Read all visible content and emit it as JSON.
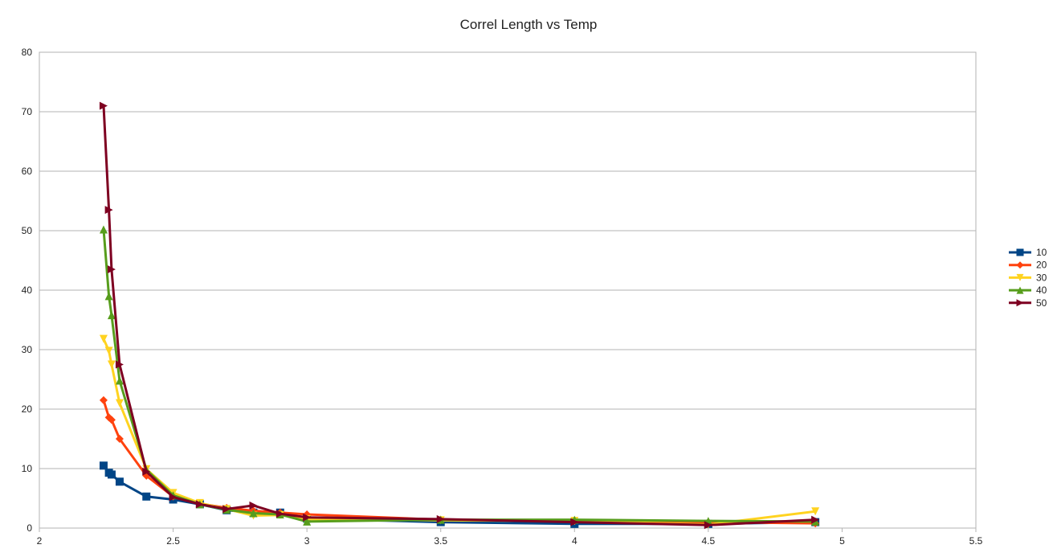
{
  "chart_data": {
    "type": "line",
    "title": "Correl Length vs Temp",
    "xlabel": "",
    "ylabel": "",
    "xlim": [
      2,
      5.5
    ],
    "ylim": [
      0,
      80
    ],
    "x_ticks": [
      2,
      2.5,
      3,
      3.5,
      4,
      4.5,
      5,
      5.5
    ],
    "y_ticks": [
      0,
      10,
      20,
      30,
      40,
      50,
      60,
      70,
      80
    ],
    "x_tick_labels": [
      "2",
      "2.5",
      "3",
      "3.5",
      "4",
      "4.5",
      "5",
      "5.5"
    ],
    "y_tick_labels": [
      "0",
      "10",
      "20",
      "30",
      "40",
      "50",
      "60",
      "70",
      "80"
    ],
    "grid": true,
    "legend_position": "right",
    "series": [
      {
        "name": "10",
        "color": "#004586",
        "marker": "square",
        "points": [
          [
            2.24,
            10.5
          ],
          [
            2.26,
            9.3
          ],
          [
            2.27,
            9.0
          ],
          [
            2.3,
            7.8
          ],
          [
            2.4,
            5.3
          ],
          [
            2.5,
            4.8
          ],
          [
            2.6,
            4.0
          ],
          [
            2.7,
            3.0
          ],
          [
            2.8,
            2.6
          ],
          [
            2.9,
            2.6
          ],
          [
            3.0,
            1.6
          ],
          [
            3.5,
            1.0
          ],
          [
            4.0,
            0.7
          ],
          [
            4.5,
            0.7
          ],
          [
            4.9,
            1.0
          ]
        ]
      },
      {
        "name": "20",
        "color": "#ff420e",
        "marker": "diamond",
        "points": [
          [
            2.24,
            21.5
          ],
          [
            2.26,
            18.6
          ],
          [
            2.27,
            18.2
          ],
          [
            2.3,
            15.0
          ],
          [
            2.4,
            8.8
          ],
          [
            2.5,
            5.3
          ],
          [
            2.6,
            4.1
          ],
          [
            2.7,
            3.4
          ],
          [
            2.8,
            2.9
          ],
          [
            2.9,
            2.6
          ],
          [
            3.0,
            2.3
          ],
          [
            3.5,
            1.4
          ],
          [
            4.0,
            1.2
          ],
          [
            4.5,
            1.0
          ],
          [
            4.9,
            0.8
          ]
        ]
      },
      {
        "name": "30",
        "color": "#ffd320",
        "marker": "triangle-down",
        "points": [
          [
            2.24,
            31.8
          ],
          [
            2.26,
            29.8
          ],
          [
            2.27,
            27.5
          ],
          [
            2.3,
            21.0
          ],
          [
            2.4,
            9.9
          ],
          [
            2.5,
            5.9
          ],
          [
            2.6,
            4.2
          ],
          [
            2.7,
            3.2
          ],
          [
            2.8,
            2.1
          ],
          [
            2.9,
            2.2
          ],
          [
            3.0,
            1.5
          ],
          [
            3.5,
            1.3
          ],
          [
            4.0,
            1.2
          ],
          [
            4.5,
            0.6
          ],
          [
            4.9,
            2.8
          ]
        ]
      },
      {
        "name": "40",
        "color": "#579d1c",
        "marker": "triangle-up",
        "points": [
          [
            2.24,
            50.2
          ],
          [
            2.26,
            39.0
          ],
          [
            2.27,
            35.8
          ],
          [
            2.3,
            24.8
          ],
          [
            2.4,
            9.8
          ],
          [
            2.5,
            5.5
          ],
          [
            2.6,
            4.0
          ],
          [
            2.7,
            3.1
          ],
          [
            2.8,
            2.5
          ],
          [
            2.9,
            2.3
          ],
          [
            3.0,
            1.1
          ],
          [
            3.5,
            1.4
          ],
          [
            4.0,
            1.4
          ],
          [
            4.5,
            1.2
          ],
          [
            4.9,
            1.1
          ]
        ]
      },
      {
        "name": "50",
        "color": "#7e0021",
        "marker": "triangle-right",
        "points": [
          [
            2.24,
            71.0
          ],
          [
            2.26,
            53.5
          ],
          [
            2.27,
            43.5
          ],
          [
            2.3,
            27.5
          ],
          [
            2.4,
            9.5
          ],
          [
            2.5,
            5.2
          ],
          [
            2.6,
            4.0
          ],
          [
            2.7,
            3.2
          ],
          [
            2.8,
            3.8
          ],
          [
            2.9,
            2.4
          ],
          [
            3.0,
            1.8
          ],
          [
            3.5,
            1.5
          ],
          [
            4.0,
            1.0
          ],
          [
            4.5,
            0.5
          ],
          [
            4.9,
            1.4
          ]
        ]
      }
    ]
  }
}
